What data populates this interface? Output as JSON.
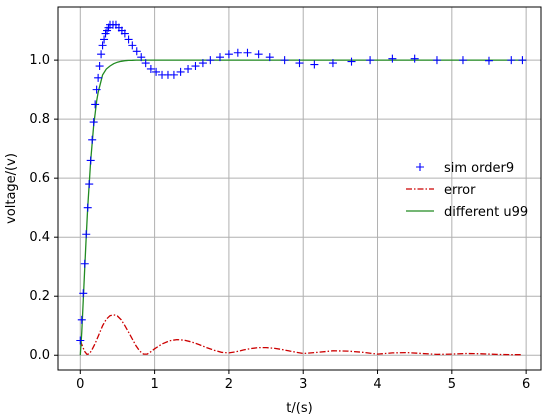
{
  "chart_data": {
    "type": "line",
    "title": "",
    "xlabel": "t/(s)",
    "ylabel": "voltage/(v)",
    "xlim": [
      -0.3,
      6.2
    ],
    "ylim": [
      -0.05,
      1.18
    ],
    "xticks": [
      0,
      1,
      2,
      3,
      4,
      5,
      6
    ],
    "yticks": [
      0.0,
      0.2,
      0.4,
      0.6,
      0.8,
      1.0
    ],
    "xtick_labels": [
      "0",
      "1",
      "2",
      "3",
      "4",
      "5",
      "6"
    ],
    "ytick_labels": [
      "0.0",
      "0.2",
      "0.4",
      "0.6",
      "0.8",
      "1.0"
    ],
    "grid": true,
    "legend_position": "center-right",
    "series": [
      {
        "name": "sim order9",
        "style": "plus-markers",
        "color": "#0000ff",
        "x": [
          0.0,
          0.02,
          0.04,
          0.06,
          0.08,
          0.1,
          0.12,
          0.14,
          0.16,
          0.18,
          0.2,
          0.22,
          0.24,
          0.26,
          0.28,
          0.3,
          0.32,
          0.34,
          0.36,
          0.38,
          0.4,
          0.44,
          0.48,
          0.52,
          0.56,
          0.6,
          0.65,
          0.7,
          0.76,
          0.82,
          0.88,
          0.95,
          1.02,
          1.1,
          1.18,
          1.26,
          1.35,
          1.45,
          1.55,
          1.65,
          1.75,
          1.88,
          2.0,
          2.12,
          2.25,
          2.4,
          2.55,
          2.75,
          2.95,
          3.15,
          3.4,
          3.65,
          3.9,
          4.2,
          4.5,
          4.8,
          5.15,
          5.5,
          5.8,
          5.95
        ],
        "y": [
          0.05,
          0.12,
          0.21,
          0.31,
          0.41,
          0.5,
          0.58,
          0.66,
          0.73,
          0.79,
          0.85,
          0.9,
          0.94,
          0.98,
          1.02,
          1.05,
          1.07,
          1.09,
          1.1,
          1.11,
          1.12,
          1.12,
          1.12,
          1.11,
          1.1,
          1.09,
          1.07,
          1.05,
          1.03,
          1.01,
          0.99,
          0.97,
          0.96,
          0.95,
          0.95,
          0.95,
          0.96,
          0.97,
          0.98,
          0.99,
          1.0,
          1.01,
          1.02,
          1.025,
          1.025,
          1.02,
          1.01,
          1.0,
          0.99,
          0.985,
          0.99,
          0.995,
          1.0,
          1.005,
          1.005,
          1.0,
          1.0,
          0.998,
          1.0,
          1.0
        ]
      },
      {
        "name": "error",
        "style": "dash-dot",
        "color": "#cc0000",
        "x": [
          0.0,
          0.03,
          0.06,
          0.09,
          0.12,
          0.15,
          0.2,
          0.25,
          0.3,
          0.35,
          0.4,
          0.45,
          0.5,
          0.55,
          0.6,
          0.65,
          0.7,
          0.75,
          0.8,
          0.85,
          0.9,
          0.95,
          1.0,
          1.1,
          1.2,
          1.3,
          1.4,
          1.5,
          1.6,
          1.7,
          1.8,
          1.9,
          2.0,
          2.1,
          2.2,
          2.3,
          2.4,
          2.5,
          2.6,
          2.7,
          2.8,
          3.0,
          3.2,
          3.4,
          3.6,
          3.8,
          4.0,
          4.2,
          4.4,
          4.6,
          4.8,
          5.0,
          5.2,
          5.4,
          5.6,
          5.8,
          5.95
        ],
        "y": [
          0.05,
          0.03,
          0.012,
          0.003,
          0.005,
          0.015,
          0.04,
          0.07,
          0.1,
          0.122,
          0.134,
          0.137,
          0.133,
          0.12,
          0.1,
          0.078,
          0.055,
          0.032,
          0.014,
          0.004,
          0.004,
          0.012,
          0.022,
          0.038,
          0.049,
          0.053,
          0.051,
          0.045,
          0.036,
          0.026,
          0.017,
          0.01,
          0.008,
          0.012,
          0.018,
          0.023,
          0.026,
          0.026,
          0.024,
          0.02,
          0.015,
          0.006,
          0.01,
          0.015,
          0.014,
          0.01,
          0.004,
          0.008,
          0.009,
          0.006,
          0.003,
          0.004,
          0.006,
          0.005,
          0.003,
          0.002,
          0.002
        ]
      },
      {
        "name": "different u99",
        "style": "solid",
        "color": "#228b22",
        "x": [
          0.0,
          0.02,
          0.04,
          0.06,
          0.08,
          0.1,
          0.12,
          0.14,
          0.16,
          0.18,
          0.2,
          0.22,
          0.24,
          0.26,
          0.28,
          0.3,
          0.35,
          0.4,
          0.45,
          0.5,
          0.55,
          0.6,
          0.65,
          0.7,
          0.75,
          0.8,
          0.9,
          1.0,
          1.2,
          1.5,
          2.0,
          3.0,
          4.0,
          5.0,
          6.0
        ],
        "y": [
          0.0,
          0.08,
          0.19,
          0.3,
          0.4,
          0.5,
          0.58,
          0.66,
          0.72,
          0.78,
          0.82,
          0.86,
          0.89,
          0.91,
          0.93,
          0.95,
          0.97,
          0.98,
          0.988,
          0.993,
          0.996,
          0.998,
          0.999,
          0.9995,
          1.0,
          1.0,
          1.0,
          1.0,
          1.0,
          1.0,
          1.0,
          1.0,
          1.0,
          1.0,
          1.0
        ]
      }
    ]
  }
}
